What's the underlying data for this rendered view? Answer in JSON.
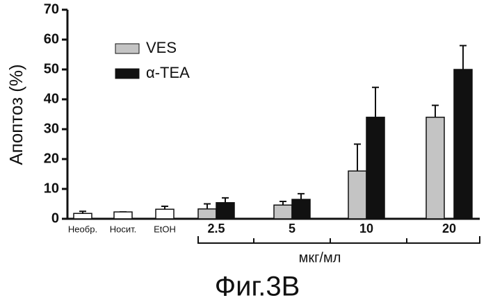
{
  "chart_data": {
    "type": "bar",
    "caption": "Фиг.3В",
    "y_label": "Апоптоз (%)",
    "x_label": "мкг/мл",
    "categories": [
      "Необр.",
      "Носит.",
      "EtOH",
      "2.5",
      "5",
      "10",
      "20"
    ],
    "series": [
      {
        "color": "#ffffff",
        "values": [
          1.8,
          2.3,
          3.2,
          null,
          null,
          null,
          null
        ],
        "errors": [
          0.7,
          0,
          1,
          null,
          null,
          null,
          null
        ]
      },
      {
        "name": "VES",
        "color": "#c4c4c4",
        "values": [
          null,
          null,
          null,
          3.3,
          4.6,
          16,
          34
        ],
        "errors": [
          null,
          null,
          null,
          1.7,
          1.2,
          9,
          4
        ]
      },
      {
        "name": "α-TEA",
        "color": "#111111",
        "values": [
          null,
          null,
          null,
          5.4,
          6.5,
          34,
          50
        ],
        "errors": [
          null,
          null,
          null,
          1.6,
          1.9,
          10,
          8
        ]
      }
    ],
    "ylim": [
      0,
      70
    ],
    "yticks": [
      0,
      10,
      20,
      30,
      40,
      50,
      60,
      70
    ]
  }
}
